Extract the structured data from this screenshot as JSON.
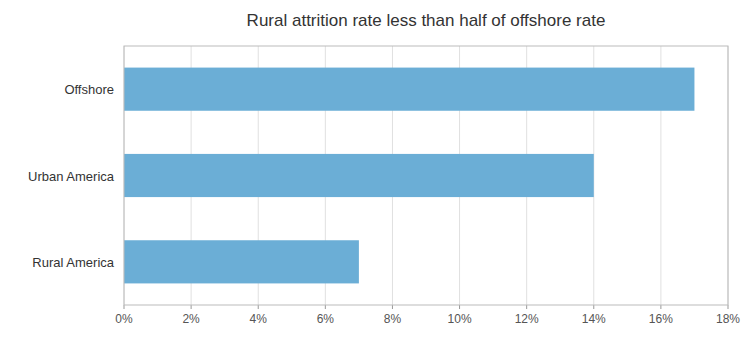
{
  "chart_data": {
    "type": "bar",
    "orientation": "horizontal",
    "title": "Rural attrition rate less than half of offshore rate",
    "categories": [
      "Rural America",
      "Urban America",
      "Offshore"
    ],
    "values": [
      0.07,
      0.14,
      0.17
    ],
    "color": "#6BAED6",
    "xlim": [
      0,
      0.18
    ],
    "xticks": [
      {
        "value": 0,
        "label": "0%"
      },
      {
        "value": 0.02,
        "label": "2%"
      },
      {
        "value": 0.04,
        "label": "4%"
      },
      {
        "value": 0.06,
        "label": "6%"
      },
      {
        "value": 0.08,
        "label": "8%"
      },
      {
        "value": 0.1,
        "label": "10%"
      },
      {
        "value": 0.12,
        "label": "12%"
      },
      {
        "value": 0.14,
        "label": "14%"
      },
      {
        "value": 0.16,
        "label": "16%"
      },
      {
        "value": 0.18,
        "label": "18%"
      }
    ],
    "grid": true
  }
}
